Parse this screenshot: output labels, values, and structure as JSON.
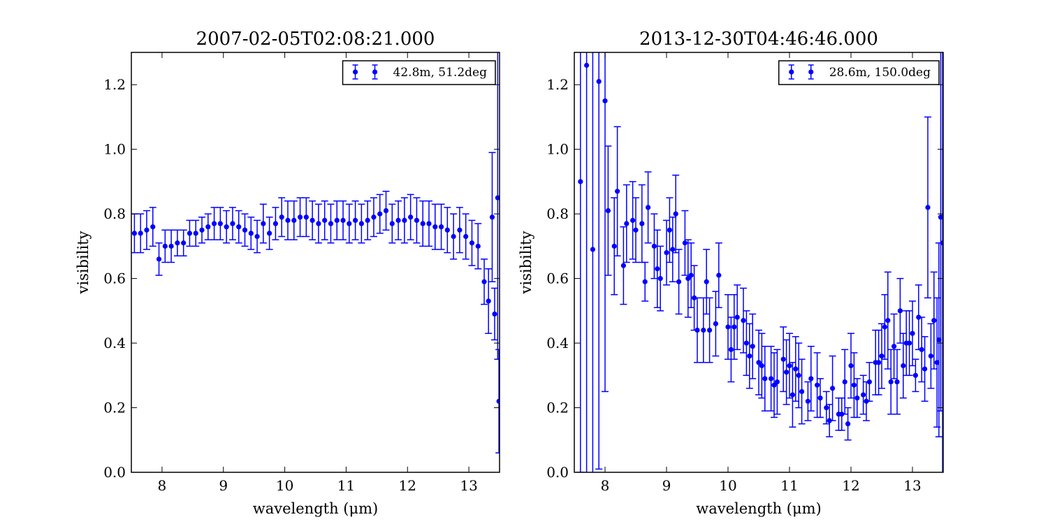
{
  "chart_data": [
    {
      "type": "errorbar",
      "title": "2007-02-05T02:08:21.000",
      "xlabel": "wavelength (μm)",
      "ylabel": "visibility",
      "xlim": [
        7.5,
        13.5
      ],
      "xticks": [
        8,
        9,
        10,
        11,
        12,
        13
      ],
      "ylim": [
        0,
        1.3
      ],
      "yticks": [
        {
          "value": 0,
          "label": "0.0"
        },
        0.2,
        0.4,
        0.6,
        0.8,
        {
          "value": 1,
          "label": "1.0"
        },
        1.2
      ],
      "legend": "upper right",
      "series": [
        {
          "name": "42.8m, 51.2deg",
          "color": "#0000ff",
          "x": [
            7.55,
            7.65,
            7.75,
            7.85,
            7.95,
            8.05,
            8.15,
            8.25,
            8.35,
            8.45,
            8.55,
            8.65,
            8.75,
            8.85,
            8.95,
            9.05,
            9.15,
            9.25,
            9.35,
            9.45,
            9.55,
            9.65,
            9.75,
            9.85,
            9.95,
            10.05,
            10.15,
            10.25,
            10.35,
            10.45,
            10.55,
            10.65,
            10.75,
            10.85,
            10.95,
            11.05,
            11.15,
            11.25,
            11.35,
            11.45,
            11.55,
            11.65,
            11.75,
            11.85,
            11.95,
            12.05,
            12.15,
            12.25,
            12.35,
            12.45,
            12.55,
            12.65,
            12.75,
            12.85,
            12.95,
            13.05,
            13.15,
            13.25,
            13.32,
            13.38,
            13.42,
            13.47,
            13.49
          ],
          "values": [
            0.74,
            0.74,
            0.75,
            0.76,
            0.66,
            0.7,
            0.7,
            0.71,
            0.71,
            0.74,
            0.74,
            0.75,
            0.76,
            0.77,
            0.77,
            0.76,
            0.77,
            0.76,
            0.75,
            0.74,
            0.73,
            0.77,
            0.74,
            0.77,
            0.79,
            0.78,
            0.78,
            0.79,
            0.79,
            0.78,
            0.77,
            0.78,
            0.77,
            0.78,
            0.78,
            0.77,
            0.78,
            0.77,
            0.78,
            0.79,
            0.8,
            0.81,
            0.77,
            0.78,
            0.78,
            0.79,
            0.78,
            0.77,
            0.77,
            0.76,
            0.76,
            0.75,
            0.73,
            0.75,
            0.73,
            0.71,
            0.7,
            0.59,
            0.53,
            0.79,
            0.49,
            0.85,
            0.22
          ],
          "errors": [
            0.06,
            0.06,
            0.06,
            0.06,
            0.05,
            0.05,
            0.05,
            0.04,
            0.04,
            0.04,
            0.04,
            0.04,
            0.04,
            0.05,
            0.05,
            0.05,
            0.05,
            0.05,
            0.05,
            0.05,
            0.05,
            0.06,
            0.05,
            0.05,
            0.06,
            0.06,
            0.06,
            0.06,
            0.06,
            0.06,
            0.06,
            0.06,
            0.06,
            0.06,
            0.06,
            0.06,
            0.06,
            0.06,
            0.06,
            0.06,
            0.06,
            0.06,
            0.06,
            0.06,
            0.07,
            0.07,
            0.07,
            0.07,
            0.07,
            0.07,
            0.07,
            0.07,
            0.07,
            0.07,
            0.07,
            0.07,
            0.07,
            0.07,
            0.1,
            0.2,
            0.08,
            0.5,
            0.16
          ]
        }
      ]
    },
    {
      "type": "errorbar",
      "title": "2013-12-30T04:46:46.000",
      "xlabel": "wavelength (μm)",
      "ylabel": "visibility",
      "xlim": [
        7.5,
        13.5
      ],
      "xticks": [
        8,
        9,
        10,
        11,
        12,
        13
      ],
      "ylim": [
        0,
        1.3
      ],
      "yticks": [
        {
          "value": 0,
          "label": "0.0"
        },
        0.2,
        0.4,
        0.6,
        0.8,
        {
          "value": 1,
          "label": "1.0"
        },
        1.2
      ],
      "legend": "upper right",
      "series": [
        {
          "name": "28.6m, 150.0deg",
          "color": "#0000ff",
          "x": [
            7.6,
            7.7,
            7.8,
            7.9,
            8.0,
            8.05,
            8.15,
            8.2,
            8.3,
            8.35,
            8.45,
            8.5,
            8.6,
            8.65,
            8.7,
            8.8,
            8.85,
            8.9,
            9.0,
            9.05,
            9.1,
            9.15,
            9.2,
            9.3,
            9.35,
            9.4,
            9.45,
            9.5,
            9.6,
            9.65,
            9.7,
            9.8,
            9.85,
            10.0,
            10.05,
            10.1,
            10.15,
            10.25,
            10.3,
            10.35,
            10.4,
            10.5,
            10.55,
            10.6,
            10.7,
            10.75,
            10.8,
            10.9,
            10.95,
            11.0,
            11.05,
            11.1,
            11.15,
            11.2,
            11.3,
            11.35,
            11.45,
            11.5,
            11.6,
            11.65,
            11.7,
            11.8,
            11.85,
            11.9,
            11.95,
            12.0,
            12.05,
            12.1,
            12.2,
            12.25,
            12.3,
            12.4,
            12.45,
            12.5,
            12.55,
            12.6,
            12.65,
            12.7,
            12.75,
            12.8,
            12.85,
            12.9,
            12.95,
            13.0,
            13.05,
            13.1,
            13.15,
            13.2,
            13.25,
            13.3,
            13.35,
            13.4,
            13.43,
            13.46,
            13.49
          ],
          "values": [
            0.9,
            1.26,
            0.69,
            1.21,
            1.15,
            0.81,
            0.7,
            0.87,
            0.64,
            0.77,
            0.78,
            0.75,
            0.77,
            0.59,
            0.82,
            0.7,
            0.63,
            0.6,
            0.68,
            0.75,
            0.69,
            0.8,
            0.59,
            0.71,
            0.6,
            0.61,
            0.54,
            0.44,
            0.44,
            0.59,
            0.44,
            0.46,
            0.61,
            0.45,
            0.38,
            0.45,
            0.48,
            0.47,
            0.4,
            0.36,
            0.39,
            0.34,
            0.33,
            0.29,
            0.29,
            0.27,
            0.28,
            0.35,
            0.31,
            0.33,
            0.24,
            0.32,
            0.3,
            0.25,
            0.22,
            0.29,
            0.27,
            0.23,
            0.2,
            0.16,
            0.26,
            0.18,
            0.18,
            0.28,
            0.15,
            0.33,
            0.27,
            0.23,
            0.24,
            0.22,
            0.28,
            0.34,
            0.34,
            0.36,
            0.45,
            0.47,
            0.28,
            0.39,
            0.28,
            0.5,
            0.33,
            0.4,
            0.4,
            0.43,
            0.3,
            0.48,
            0.38,
            0.32,
            0.82,
            0.36,
            0.47,
            0.34,
            0.41,
            0.79,
            0.71
          ],
          "errors": [
            0.9,
            1.5,
            0.7,
            1.2,
            0.9,
            0.2,
            0.15,
            0.2,
            0.12,
            0.12,
            0.12,
            0.1,
            0.12,
            0.06,
            0.11,
            0.1,
            0.12,
            0.1,
            0.1,
            0.1,
            0.1,
            0.12,
            0.1,
            0.1,
            0.12,
            0.1,
            0.1,
            0.1,
            0.1,
            0.1,
            0.1,
            0.1,
            0.1,
            0.1,
            0.1,
            0.1,
            0.1,
            0.1,
            0.1,
            0.1,
            0.1,
            0.1,
            0.1,
            0.1,
            0.1,
            0.1,
            0.1,
            0.1,
            0.1,
            0.1,
            0.1,
            0.1,
            0.1,
            0.1,
            0.06,
            0.1,
            0.1,
            0.06,
            0.05,
            0.05,
            0.1,
            0.05,
            0.05,
            0.1,
            0.05,
            0.1,
            0.1,
            0.06,
            0.06,
            0.06,
            0.06,
            0.1,
            0.1,
            0.1,
            0.1,
            0.15,
            0.1,
            0.1,
            0.1,
            0.1,
            0.1,
            0.1,
            0.1,
            0.1,
            0.05,
            0.1,
            0.1,
            0.1,
            0.28,
            0.1,
            0.15,
            0.2,
            0.3,
            0.6,
            0.8
          ]
        }
      ]
    }
  ]
}
